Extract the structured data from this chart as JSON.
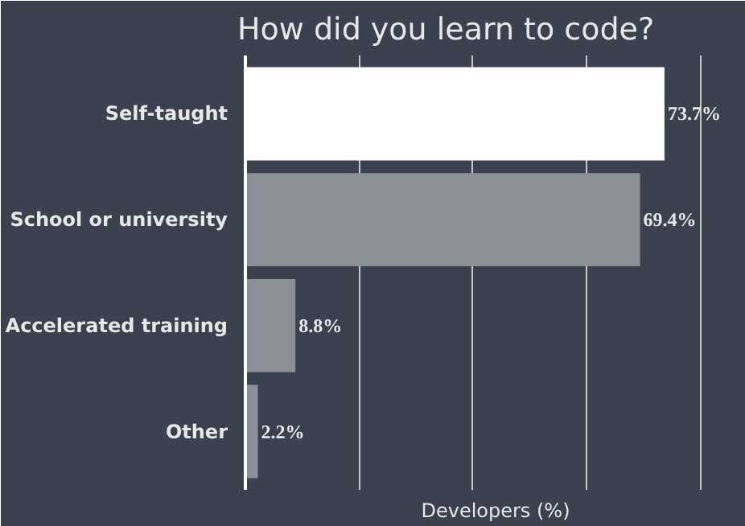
{
  "chart_data": {
    "type": "bar",
    "orientation": "horizontal",
    "title": "How did you learn to code?",
    "xlabel": "Developers (%)",
    "categories": [
      "Self-taught",
      "School or university",
      "Accelerated training",
      "Other"
    ],
    "values": [
      73.7,
      69.4,
      8.8,
      2.2
    ],
    "colors": [
      "#ffffff",
      "#8b8f96",
      "#8b8f96",
      "#8b8f96"
    ],
    "value_labels": [
      "73.7%",
      "69.4%",
      "8.8%",
      "2.2%"
    ],
    "xlim": [
      0,
      88
    ],
    "xticks": [
      {
        "value": 20,
        "label": null
      },
      {
        "value": 40,
        "label": null
      },
      {
        "value": 60,
        "label": null
      },
      {
        "value": 80,
        "label": null
      }
    ],
    "grid": "x",
    "tick_labels": "y"
  }
}
